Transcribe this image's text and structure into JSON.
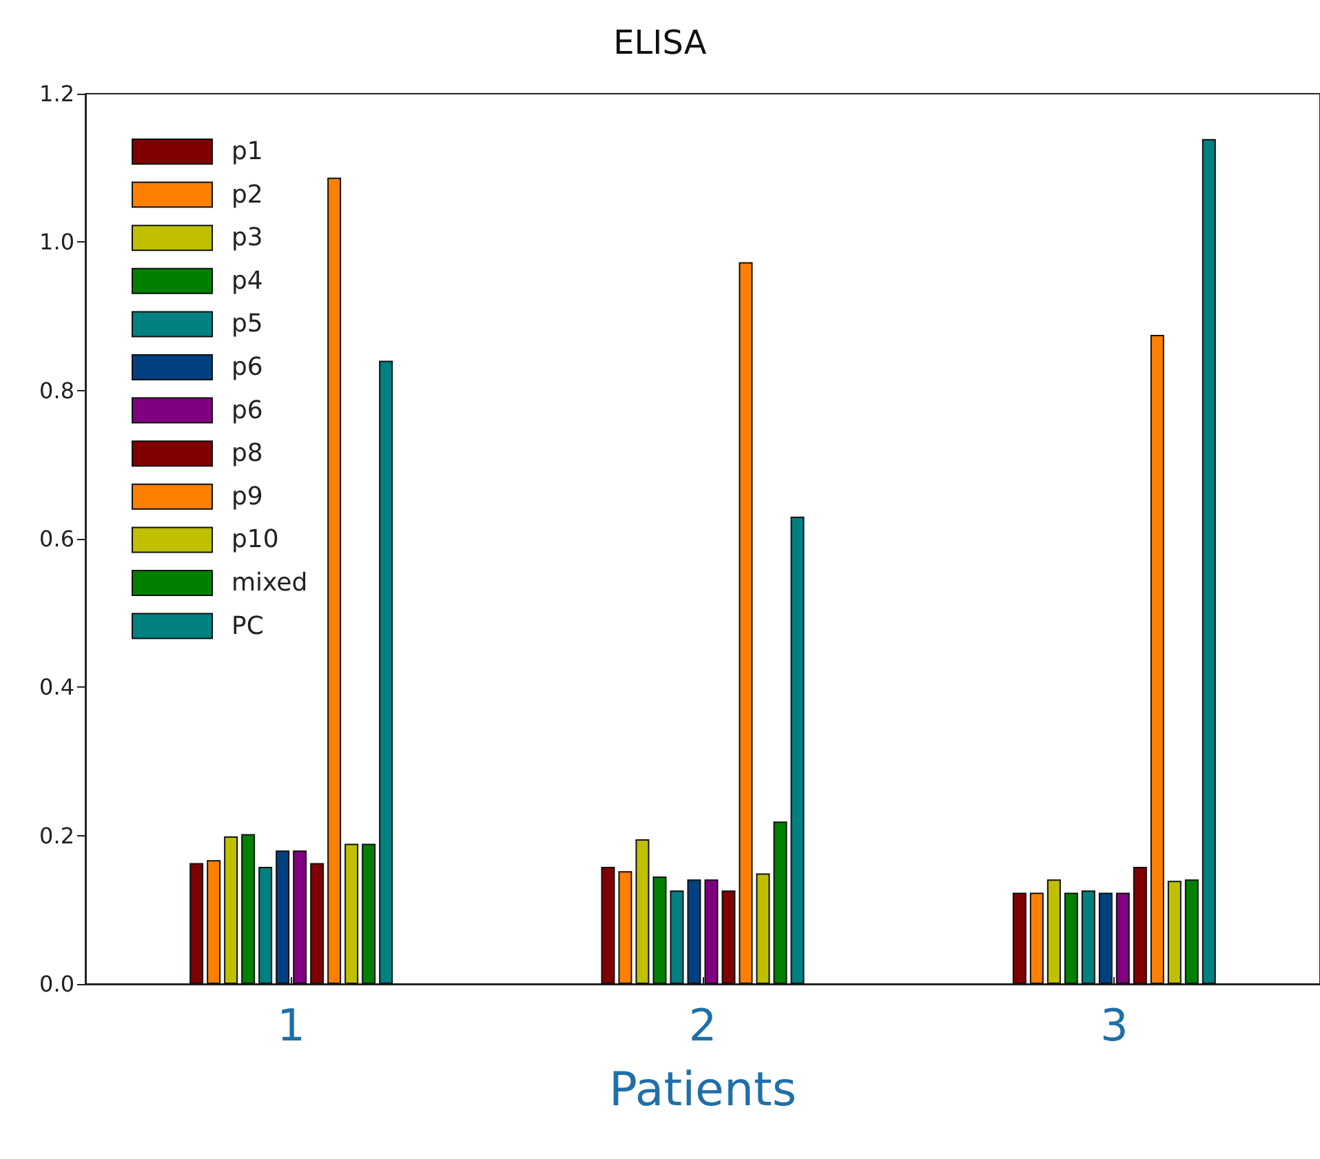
{
  "chart_data": {
    "type": "bar",
    "title": "ELISA",
    "xlabel": "Patients",
    "categories": [
      "1",
      "2",
      "3"
    ],
    "series": [
      {
        "name": "p1",
        "color": "#7f0000",
        "values": [
          0.163,
          0.158,
          0.123
        ]
      },
      {
        "name": "p2",
        "color": "#ff8000",
        "values": [
          0.167,
          0.152,
          0.123
        ]
      },
      {
        "name": "p3",
        "color": "#c0c000",
        "values": [
          0.199,
          0.195,
          0.141
        ]
      },
      {
        "name": "p4",
        "color": "#008000",
        "values": [
          0.202,
          0.145,
          0.123
        ]
      },
      {
        "name": "p5",
        "color": "#008080",
        "values": [
          0.158,
          0.126,
          0.126
        ]
      },
      {
        "name": "p6",
        "color": "#004080",
        "values": [
          0.18,
          0.141,
          0.123
        ]
      },
      {
        "name": "p6",
        "color": "#800080",
        "values": [
          0.18,
          0.141,
          0.123
        ]
      },
      {
        "name": "p8",
        "color": "#800000",
        "values": [
          0.163,
          0.126,
          0.158
        ]
      },
      {
        "name": "p9",
        "color": "#ff8000",
        "values": [
          1.087,
          0.973,
          0.875
        ]
      },
      {
        "name": "p10",
        "color": "#c0c000",
        "values": [
          0.189,
          0.149,
          0.139
        ]
      },
      {
        "name": "mixed",
        "color": "#008000",
        "values": [
          0.189,
          0.219,
          0.141
        ]
      },
      {
        "name": "PC",
        "color": "#008080",
        "values": [
          0.84,
          0.63,
          1.139
        ]
      }
    ],
    "ylim": [
      0,
      1.2
    ],
    "yticks": [
      {
        "value": 0,
        "label": "0.0"
      },
      {
        "value": 0.2,
        "label": "0.2"
      },
      {
        "value": 0.4,
        "label": "0.4"
      },
      {
        "value": 0.6,
        "label": "0.6"
      },
      {
        "value": 0.8,
        "label": "0.8"
      },
      {
        "value": 1.0,
        "label": "1.0"
      },
      {
        "value": 1.2,
        "label": "1.2"
      }
    ],
    "legend": "top left"
  }
}
